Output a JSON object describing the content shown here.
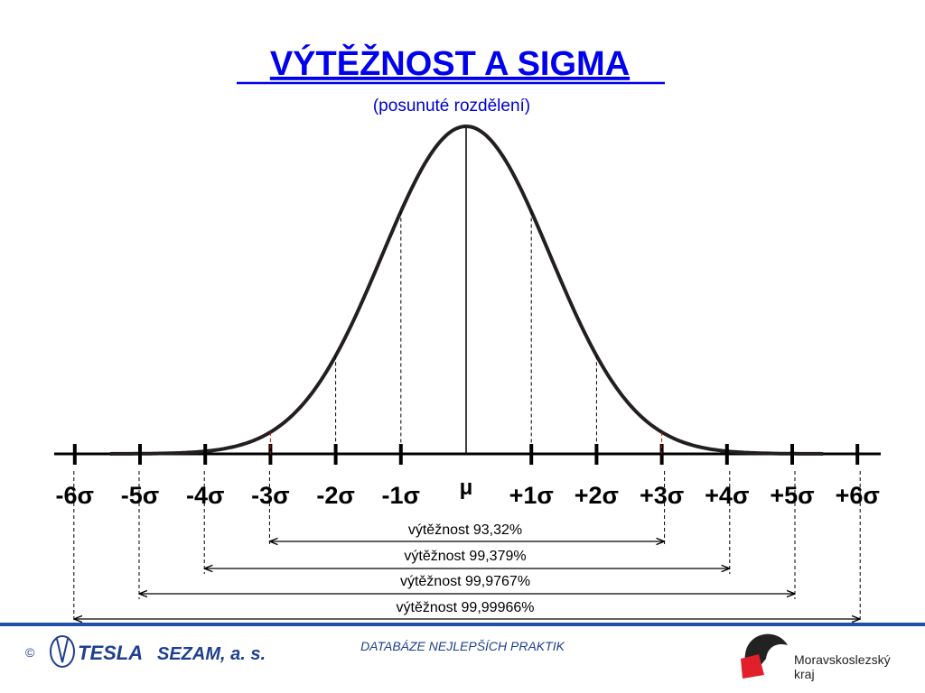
{
  "title": "VÝTĚŽNOST A SIGMA",
  "subtitle": "(posunuté rozdělení)",
  "axis_labels": [
    "-6σ",
    "-5σ",
    "-4σ",
    "-3σ",
    "-2σ",
    "-1σ",
    "μ",
    "+1σ",
    "+2σ",
    "+3σ",
    "+4σ",
    "+5σ",
    "+6σ"
  ],
  "yields": [
    "výtěžnost 93,32%",
    "výtěžnost 99,379%",
    "výtěžnost 99,9767%",
    "výtěžnost 99,99966%"
  ],
  "footer": {
    "copyright": "©",
    "company": "TESLA",
    "company_suffix": "SEZAM, a. s.",
    "center": "DATABÁZE NEJLEPŠÍCH PRAKTIK",
    "region_line1": "Moravskoslezský",
    "region_line2": "kraj"
  }
}
